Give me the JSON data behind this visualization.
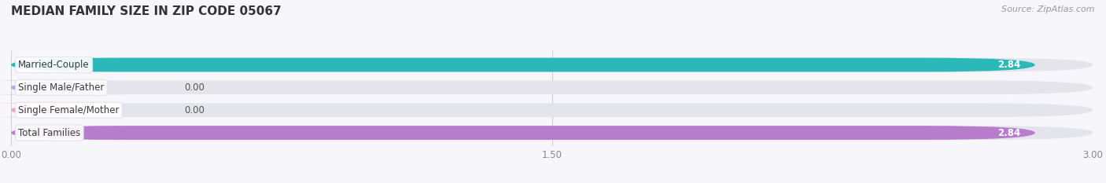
{
  "title": "MEDIAN FAMILY SIZE IN ZIP CODE 05067",
  "source": "Source: ZipAtlas.com",
  "categories": [
    "Married-Couple",
    "Single Male/Father",
    "Single Female/Mother",
    "Total Families"
  ],
  "values": [
    2.84,
    0.0,
    0.0,
    2.84
  ],
  "bar_colors": [
    "#2ab8b8",
    "#9daee8",
    "#f0a0b8",
    "#b87ccc"
  ],
  "bar_bg_color": "#e4e4ec",
  "xlim": [
    0,
    3.0
  ],
  "xticks": [
    0.0,
    1.5,
    3.0
  ],
  "xtick_labels": [
    "0.00",
    "1.50",
    "3.00"
  ],
  "background_color": "#f7f7fb",
  "title_fontsize": 11,
  "label_fontsize": 8.5,
  "value_fontsize": 8.5,
  "source_fontsize": 8
}
